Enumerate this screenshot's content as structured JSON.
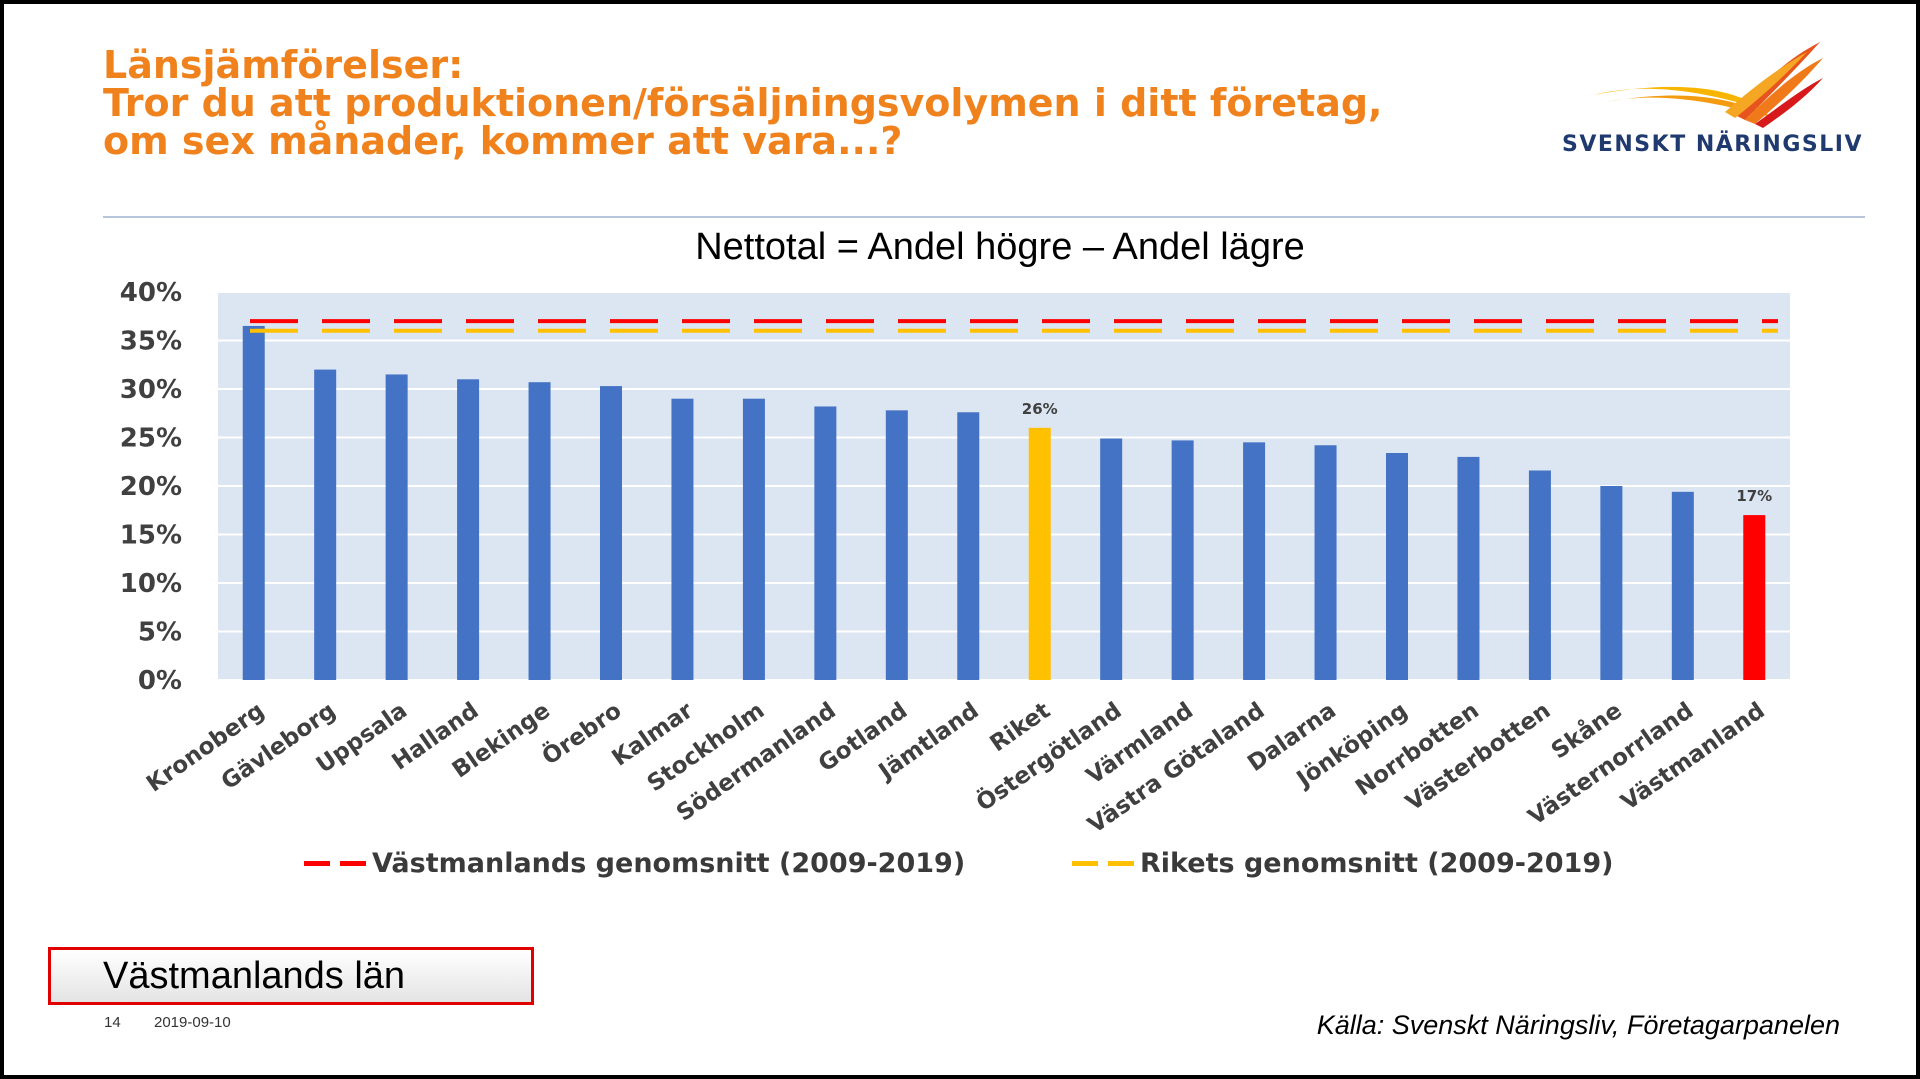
{
  "title": {
    "line1": "Länsjämförelser:",
    "line2": "Tror du att produktionen/försäljningsvolymen i ditt företag,",
    "line3": "om sex månader, kommer att vara...?"
  },
  "logo": {
    "text": "SVENSKT NÄRINGSLIV"
  },
  "footer": {
    "region_label": "Västmanlands län",
    "slide_number": "14",
    "date": "2019-09-10",
    "source": "Källa: Svenskt Näringsliv, Företagarpanelen"
  },
  "colors": {
    "title": "#f0821e",
    "bar_default": "#4472c4",
    "bar_riket": "#ffc000",
    "bar_vastmanland": "#ff0000",
    "plot_bg": "#dce6f2",
    "avg_vastmanland": "#ff0000",
    "avg_riket": "#ffc000"
  },
  "chart_data": {
    "type": "bar",
    "title": "Nettotal = Andel högre – Andel lägre",
    "xlabel": "",
    "ylabel": "",
    "ylim": [
      0,
      40
    ],
    "yticks": [
      "0%",
      "5%",
      "10%",
      "15%",
      "20%",
      "25%",
      "30%",
      "35%",
      "40%"
    ],
    "categories": [
      "Kronoberg",
      "Gävleborg",
      "Uppsala",
      "Halland",
      "Blekinge",
      "Örebro",
      "Kalmar",
      "Stockholm",
      "Södermanland",
      "Gotland",
      "Jämtland",
      "Riket",
      "Östergötland",
      "Värmland",
      "Västra Götaland",
      "Dalarna",
      "Jönköping",
      "Norrbotten",
      "Västerbotten",
      "Skåne",
      "Västernorrland",
      "Västmanland"
    ],
    "values": [
      36.5,
      32,
      31.5,
      31,
      30.7,
      30.3,
      29,
      29,
      28.2,
      27.8,
      27.6,
      26,
      24.9,
      24.7,
      24.5,
      24.2,
      23.4,
      23,
      21.6,
      20,
      19.4,
      17
    ],
    "data_labels": {
      "11": "26%",
      "21": "17%"
    },
    "reference_lines": [
      {
        "name": "Västmanlands genomsnitt (2009-2019)",
        "value": 37,
        "color": "#ff0000"
      },
      {
        "name": "Rikets genomsnitt (2009-2019)",
        "value": 36,
        "color": "#ffc000"
      }
    ],
    "legend_position": "bottom"
  }
}
